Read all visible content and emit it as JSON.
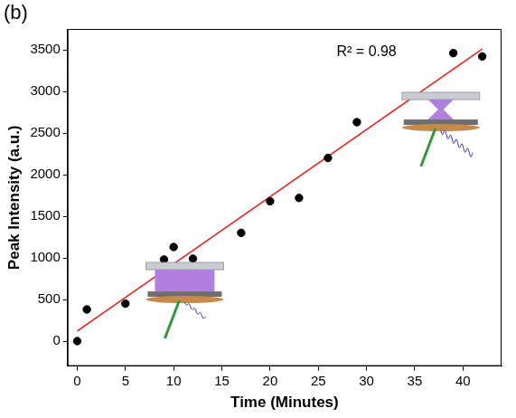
{
  "chart_data": {
    "type": "scatter",
    "panel_label": "(b)",
    "annotation": "R² = 0.98",
    "x_label": "Time (Minutes)",
    "y_label": "Peak Intensity (a.u.)",
    "xlim": [
      -1,
      44
    ],
    "xticks": [
      0,
      5,
      10,
      15,
      20,
      25,
      30,
      35,
      40
    ],
    "ylim": [
      -300,
      3750
    ],
    "yticks": [
      0,
      500,
      1000,
      1500,
      2000,
      2500,
      3000,
      3500
    ],
    "grid": false,
    "series": [
      {
        "type": "scatter",
        "marker": "circle",
        "color": "#000000",
        "x": [
          0,
          1,
          5,
          9,
          10,
          12,
          17,
          20,
          23,
          26,
          29,
          39,
          42
        ],
        "values": [
          0,
          380,
          450,
          980,
          1130,
          990,
          1300,
          1680,
          1720,
          2200,
          2630,
          3460,
          3420
        ]
      },
      {
        "type": "line",
        "line_style": "solid",
        "color": "#e8201c",
        "x": [
          0,
          42
        ],
        "values": [
          120,
          3510
        ]
      }
    ]
  }
}
